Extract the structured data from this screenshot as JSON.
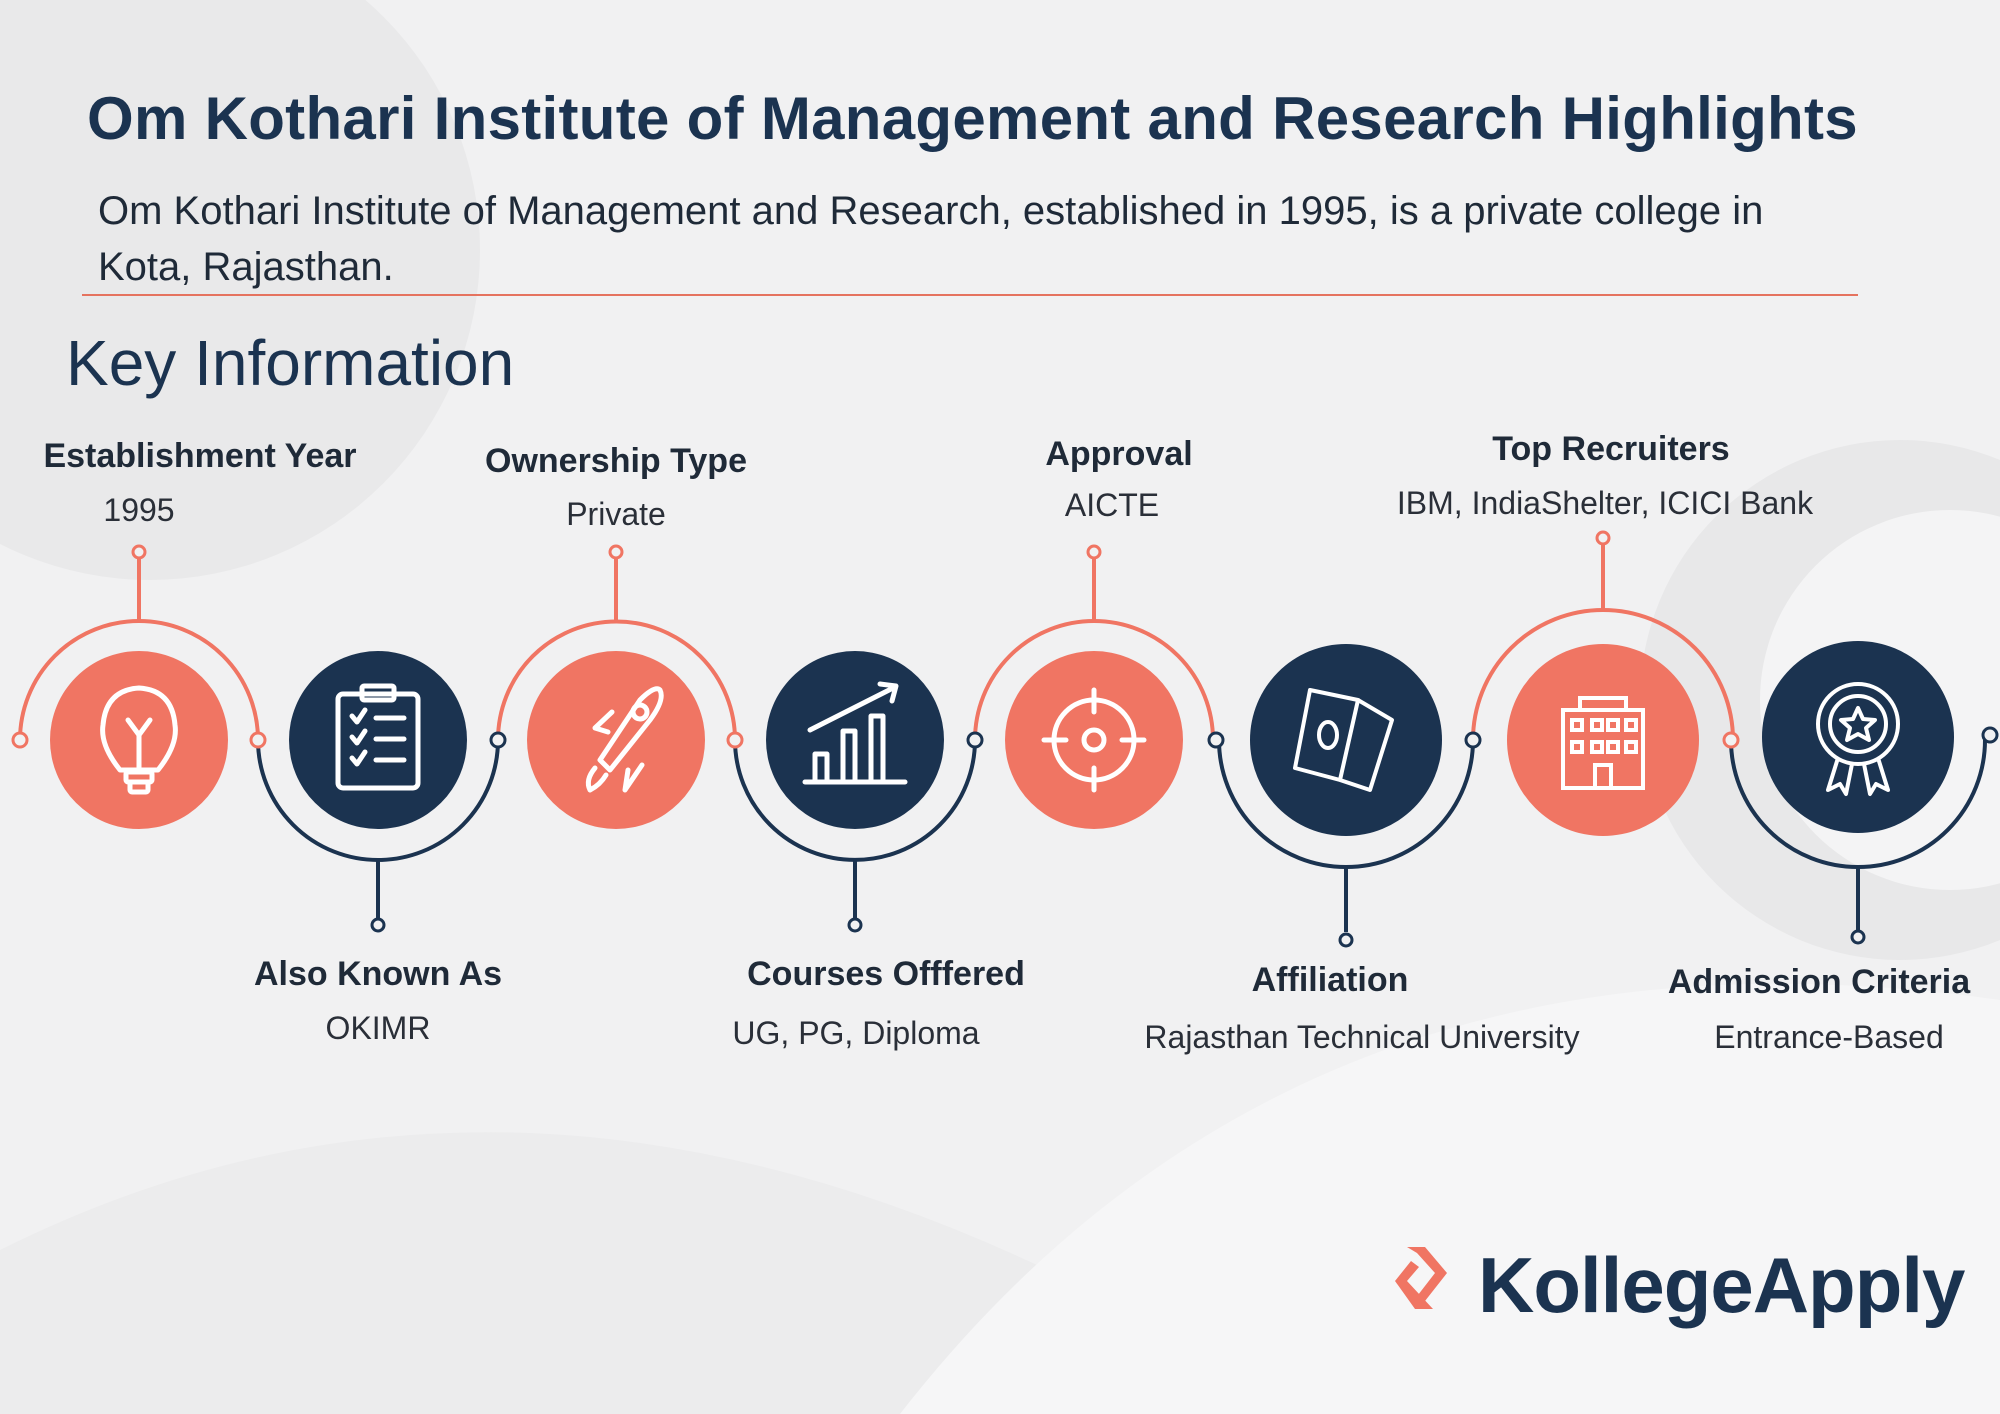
{
  "header": {
    "title": "Om Kothari Institute of Management and Research Highlights",
    "description": "Om Kothari Institute of Management and Research, established in 1995, is a private college in Kota, Rajasthan."
  },
  "section_title": "Key Information",
  "colors": {
    "coral": "#f07563",
    "navy": "#1b3350",
    "background": "#f1f1f2"
  },
  "items": [
    {
      "label": "Establishment Year",
      "value": "1995",
      "icon": "lightbulb-icon",
      "color": "coral"
    },
    {
      "label": "Also Known As",
      "value": "OKIMR",
      "icon": "clipboard-checklist-icon",
      "color": "navy"
    },
    {
      "label": "Ownership Type",
      "value": "Private",
      "icon": "rocket-icon",
      "color": "coral"
    },
    {
      "label": "Courses Offfered",
      "value": "UG, PG, Diploma",
      "icon": "bar-chart-growth-icon",
      "color": "navy"
    },
    {
      "label": "Approval",
      "value": "AICTE",
      "icon": "target-icon",
      "color": "coral"
    },
    {
      "label": "Affiliation",
      "value": "Rajasthan Technical University",
      "icon": "money-icon",
      "color": "navy"
    },
    {
      "label": "Top Recruiters",
      "value": "IBM, IndiaShelter, ICICI Bank",
      "icon": "building-icon",
      "color": "coral"
    },
    {
      "label": "Admission Criteria",
      "value": "Entrance-Based",
      "icon": "award-badge-icon",
      "color": "navy"
    }
  ],
  "logo": {
    "text": "KollegeApply"
  }
}
